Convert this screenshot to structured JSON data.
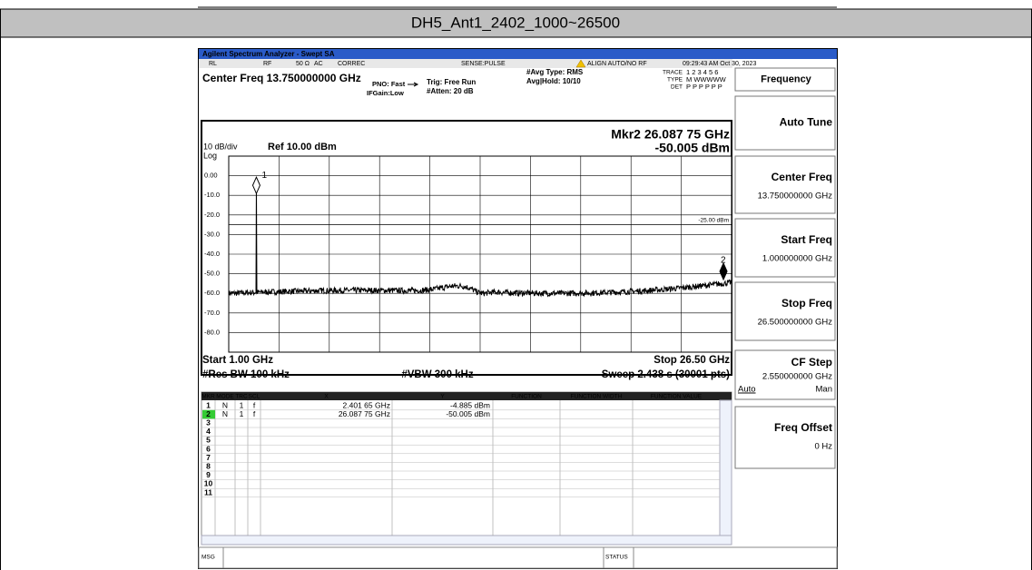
{
  "header": {
    "title": "DH5_Ant1_2402_1000~26500"
  },
  "window": {
    "title": "Agilent Spectrum Analyzer - Swept SA"
  },
  "status_bar": [
    "RL",
    "RF",
    "50 Ω",
    "AC",
    "CORREC",
    "SENSE:PULSE",
    "ALIGN AUTO/NO RF",
    "09:29:43 AM Oct 30, 2023"
  ],
  "settings": {
    "center_freq": "Center Freq 13.750000000 GHz",
    "pno": "PNO: Fast",
    "ifgain": "IFGain:Low",
    "trig": "Trig: Free Run",
    "atten": "#Atten: 20 dB",
    "avg_type": "#Avg Type: RMS",
    "avg_hold": "Avg|Hold: 10/10",
    "trace_label": "TRACE",
    "trace_value": "1 2 3 4 5 6",
    "type_label": "TYPE",
    "type_value": "M WWWWW",
    "det_label": "DET",
    "det_value": "P P P P P P"
  },
  "plot": {
    "marker_readout": "Mkr2 26.087 75 GHz",
    "marker_level": "-50.005 dBm",
    "scale": "10 dB/div",
    "ref": "Ref 10.00 dBm",
    "log": "Log",
    "y_labels": [
      "0.00",
      "-10.0",
      "-20.0",
      "-30.0",
      "-40.0",
      "-50.0",
      "-60.0",
      "-70.0",
      "-80.0"
    ],
    "display_line": "-25.00 dBm",
    "marker_labels": [
      "1",
      "2"
    ],
    "start": "Start 1.00 GHz",
    "stop": "Stop 26.50 GHz",
    "rbw": "#Res BW 100 kHz",
    "vbw": "#VBW 300 kHz",
    "sweep": "Sweep  2.438 s (30001 pts)"
  },
  "marker_table": {
    "columns": [
      "MKR",
      "MODE",
      "TRC",
      "SCL",
      "X",
      "Y",
      "FUNCTION",
      "FUNCTION WIDTH",
      "FUNCTION VALUE"
    ],
    "rows": [
      [
        "1",
        "N",
        "1",
        "f",
        "2.401 65 GHz",
        "-4.885 dBm"
      ],
      [
        "2",
        "N",
        "1",
        "f",
        "26.087 75 GHz",
        "-50.005 dBm"
      ],
      [
        "3"
      ],
      [
        "4"
      ],
      [
        "5"
      ],
      [
        "6"
      ],
      [
        "7"
      ],
      [
        "8"
      ],
      [
        "9"
      ],
      [
        "10"
      ],
      [
        "11"
      ]
    ]
  },
  "message_bar": {
    "msg": "MSG",
    "status": "STATUS"
  },
  "softkeys": [
    {
      "label": "Frequency"
    },
    {
      "label": "Auto Tune"
    },
    {
      "label": "Center Freq",
      "value": "13.750000000 GHz"
    },
    {
      "label": "Start Freq",
      "value": "1.000000000 GHz"
    },
    {
      "label": "Stop Freq",
      "value": "26.500000000 GHz"
    },
    {
      "label": "CF Step",
      "value": "2.550000000 GHz",
      "options": [
        "Auto",
        "Man"
      ]
    },
    {
      "label": "Freq Offset",
      "value": "0 Hz"
    }
  ]
}
